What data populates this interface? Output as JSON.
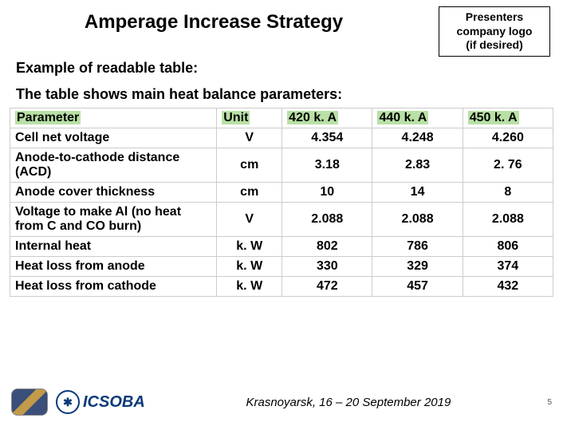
{
  "title": "Amperage Increase Strategy",
  "logo_box": {
    "l1": "Presenters",
    "l2": "company logo",
    "l3": "(if desired)"
  },
  "subtitle": "Example of readable table:",
  "intro": "The table shows main heat balance parameters:",
  "table": {
    "highlight_bg": "#b9e0a5",
    "columns": [
      "Parameter",
      "Unit",
      "420 k. A",
      "440 k. A",
      "450 k. A"
    ],
    "rows": [
      {
        "param": "Cell net voltage",
        "unit": "V",
        "v": [
          "4.354",
          "4.248",
          "4.260"
        ]
      },
      {
        "param": "Anode-to-cathode distance (ACD)",
        "unit": "cm",
        "v": [
          "3.18",
          "2.83",
          "2. 76"
        ]
      },
      {
        "param": "Anode cover thickness",
        "unit": "cm",
        "v": [
          "10",
          "14",
          "8"
        ]
      },
      {
        "param": "Voltage to make Al (no heat from C and CO burn)",
        "unit": "V",
        "v": [
          "2.088",
          "2.088",
          "2.088"
        ]
      },
      {
        "param": "Internal heat",
        "unit": "k. W",
        "v": [
          "802",
          "786",
          "806"
        ]
      },
      {
        "param": "Heat loss from anode",
        "unit": "k. W",
        "v": [
          "330",
          "329",
          "374"
        ]
      },
      {
        "param": "Heat loss from cathode",
        "unit": "k. W",
        "v": [
          "472",
          "457",
          "432"
        ]
      }
    ]
  },
  "footer": {
    "org_name": "ICSOBA",
    "conf_line": "Krasnoyarsk, 16 – 20 September 2019",
    "page_num": "5"
  }
}
